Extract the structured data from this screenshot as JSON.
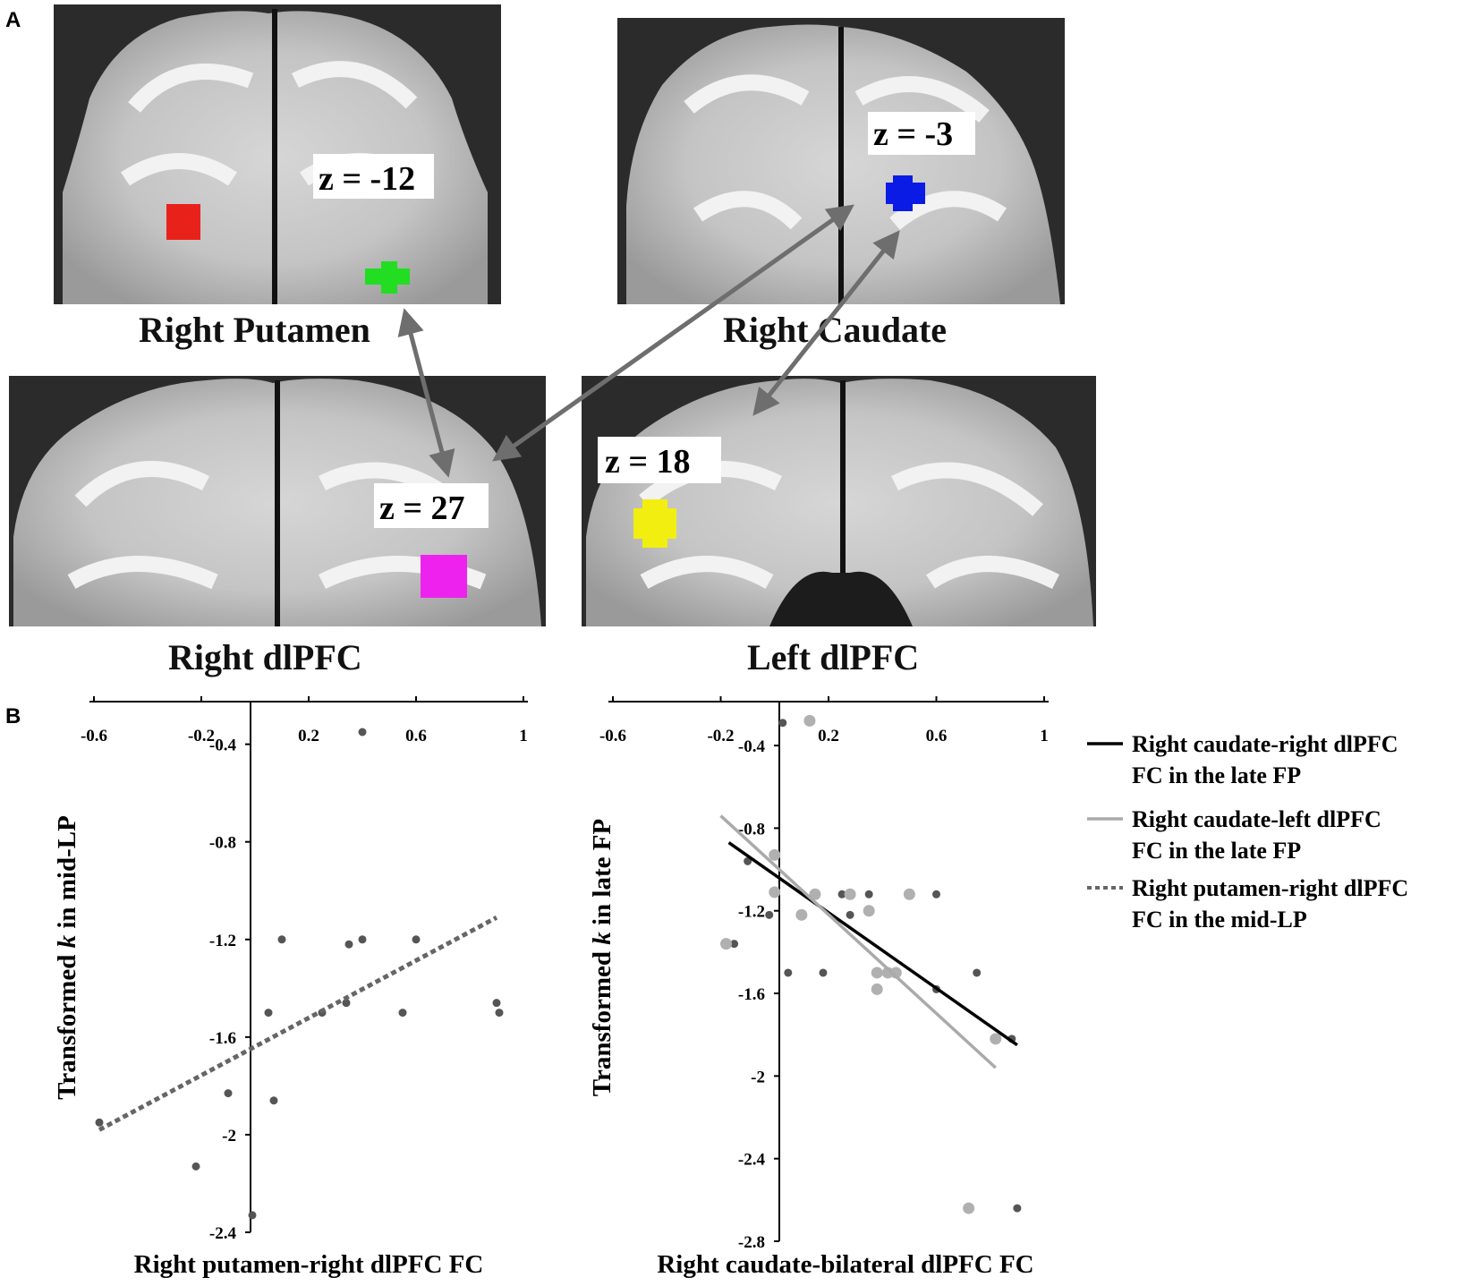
{
  "panel_a": {
    "letter": "A",
    "slices": [
      {
        "region": "Right Putamen",
        "z": "z = -12",
        "roi_colors": [
          "#e8221b",
          "#22dd22"
        ]
      },
      {
        "region": "Right Caudate",
        "z": "z = -3",
        "roi_colors": [
          "#0a1be6"
        ]
      },
      {
        "region": "Right dlPFC",
        "z": "z = 27",
        "roi_colors": [
          "#ee22ee"
        ]
      },
      {
        "region": "Left dlPFC",
        "z": "z = 18",
        "roi_colors": [
          "#f2ef10"
        ]
      }
    ],
    "arrow_color": "#6e6e6e"
  },
  "panel_b": {
    "letter": "B",
    "legend": [
      {
        "line1": "Right caudate-right dlPFC",
        "line2": "FC in the late FP",
        "color": "#000000",
        "style": "solid"
      },
      {
        "line1": "Right caudate-left dlPFC",
        "line2": "FC in the late FP",
        "color": "#aaaaaa",
        "style": "solid"
      },
      {
        "line1": "Right putamen-right dlPFC",
        "line2": "FC in the mid-LP",
        "color": "#666666",
        "style": "dotted"
      }
    ]
  },
  "chart_data": [
    {
      "type": "scatter",
      "xlabel": "Right putamen-right dlPFC FC",
      "ylabel_parts": [
        "Transformed ",
        "k",
        " in mid-LP"
      ],
      "xticks": [
        -0.6,
        -0.2,
        0.2,
        0.6,
        1
      ],
      "xtick_labels": [
        "-0.6",
        "-0.2",
        "0.2",
        "0.6",
        "1"
      ],
      "yticks": [
        -0.4,
        -0.8,
        -1.2,
        -1.6,
        -2,
        -2.4
      ],
      "ytick_labels": [
        "-0.4",
        "-0.8",
        "-1.2",
        "-1.6",
        "-2",
        "-2.4"
      ],
      "xlim": [
        -0.6,
        1.0
      ],
      "ylim": [
        -2.4,
        -0.35
      ],
      "series": [
        {
          "style": "dotted",
          "color": "#666666",
          "points": [
            [
              0.4,
              -0.35
            ],
            [
              0.1,
              -1.2
            ],
            [
              0.4,
              -1.2
            ],
            [
              0.6,
              -1.2
            ],
            [
              0.35,
              -1.22
            ],
            [
              0.05,
              -1.5
            ],
            [
              0.25,
              -1.5
            ],
            [
              0.34,
              -1.46
            ],
            [
              0.55,
              -1.5
            ],
            [
              0.9,
              -1.46
            ],
            [
              0.91,
              -1.5
            ],
            [
              -0.1,
              -1.83
            ],
            [
              0.07,
              -1.86
            ],
            [
              -0.58,
              -1.95
            ],
            [
              -0.22,
              -2.13
            ],
            [
              -0.01,
              -2.33
            ]
          ],
          "fit": [
            [
              -0.58,
              -1.98
            ],
            [
              0.9,
              -1.11
            ]
          ]
        }
      ]
    },
    {
      "type": "scatter",
      "xlabel": "Right caudate-bilateral dlPFC FC",
      "ylabel_parts": [
        "Transformed ",
        "k",
        " in late FP"
      ],
      "xticks": [
        -0.6,
        -0.2,
        0.2,
        0.6,
        1
      ],
      "xtick_labels": [
        "-0.6",
        "-0.2",
        "0.2",
        "0.6",
        "1"
      ],
      "yticks": [
        -0.4,
        -0.8,
        -1.2,
        -1.6,
        -2,
        -2.4,
        -2.8
      ],
      "ytick_labels": [
        "-0.4",
        "-0.8",
        "-1.2",
        "-1.6",
        "-2",
        "-2.4",
        "-2.8"
      ],
      "xlim": [
        -0.6,
        1.0
      ],
      "ylim": [
        -2.8,
        -0.3
      ],
      "series": [
        {
          "style": "solid",
          "color": "#000000",
          "points": [
            [
              0.03,
              -0.29
            ],
            [
              -0.1,
              -0.96
            ],
            [
              -0.02,
              -1.22
            ],
            [
              0.05,
              -1.5
            ],
            [
              0.15,
              -1.12
            ],
            [
              0.25,
              -1.12
            ],
            [
              0.28,
              -1.22
            ],
            [
              0.35,
              -1.12
            ],
            [
              0.18,
              -1.5
            ],
            [
              0.6,
              -1.12
            ],
            [
              0.6,
              -1.58
            ],
            [
              0.75,
              -1.5
            ],
            [
              0.88,
              -1.82
            ],
            [
              -0.15,
              -1.36
            ],
            [
              0.9,
              -2.64
            ]
          ],
          "fit": [
            [
              -0.17,
              -0.87
            ],
            [
              0.9,
              -1.85
            ]
          ]
        },
        {
          "style": "solid",
          "color": "#aaaaaa",
          "points": [
            [
              0.13,
              -0.28
            ],
            [
              0.0,
              -0.93
            ],
            [
              0.0,
              -1.11
            ],
            [
              0.15,
              -1.12
            ],
            [
              0.1,
              -1.22
            ],
            [
              0.28,
              -1.12
            ],
            [
              0.35,
              -1.2
            ],
            [
              0.5,
              -1.12
            ],
            [
              0.38,
              -1.5
            ],
            [
              0.42,
              -1.5
            ],
            [
              0.38,
              -1.58
            ],
            [
              -0.18,
              -1.36
            ],
            [
              0.72,
              -2.64
            ],
            [
              0.82,
              -1.82
            ],
            [
              0.45,
              -1.5
            ]
          ],
          "fit": [
            [
              -0.2,
              -0.74
            ],
            [
              0.82,
              -1.96
            ]
          ]
        }
      ]
    }
  ]
}
